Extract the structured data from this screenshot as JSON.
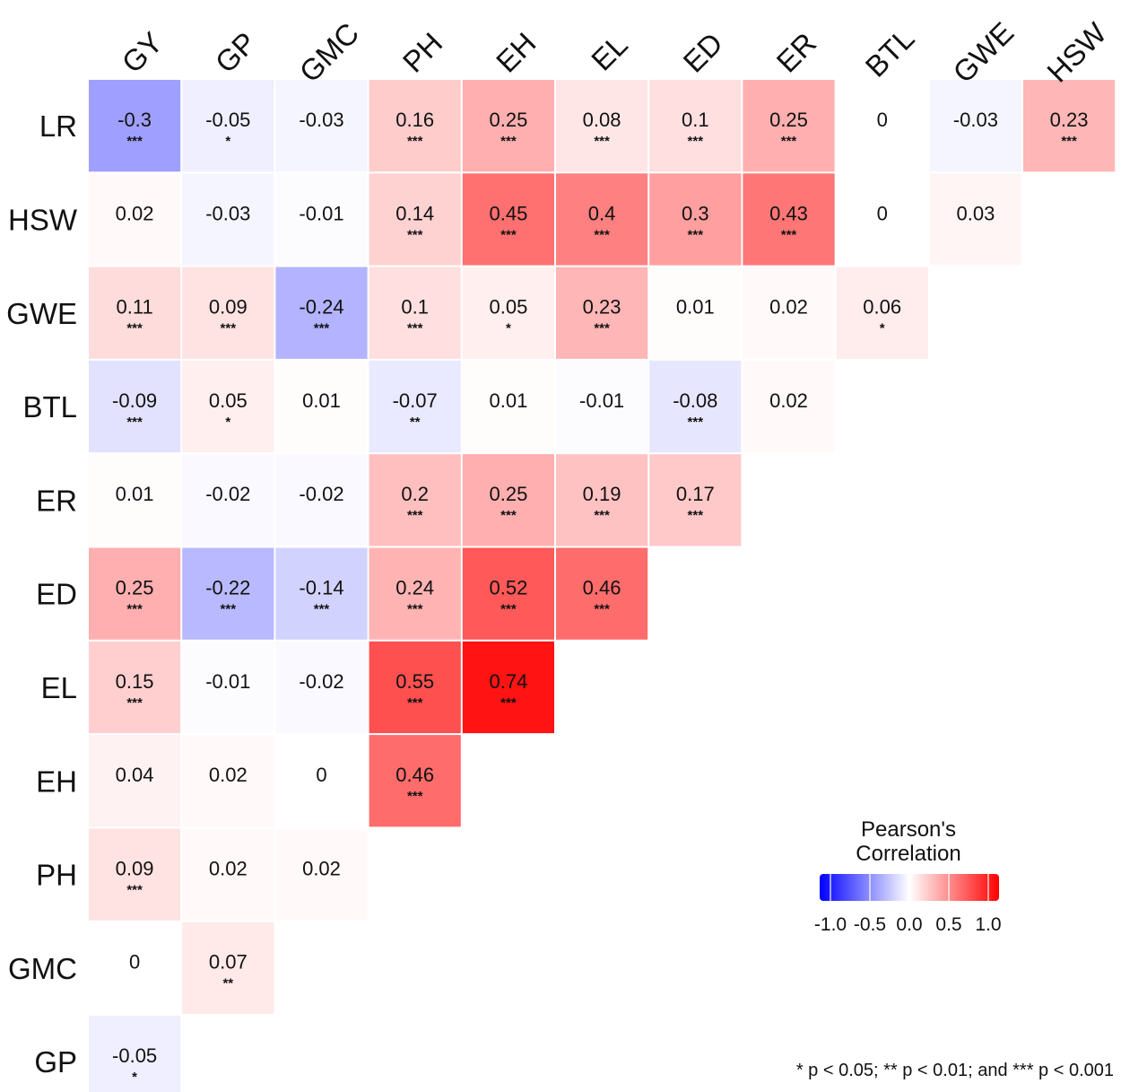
{
  "chart_data": {
    "type": "heatmap",
    "title": "",
    "columns": [
      "GY",
      "GP",
      "GMC",
      "PH",
      "EH",
      "EL",
      "ED",
      "ER",
      "BTL",
      "GWE",
      "HSW"
    ],
    "rows": [
      {
        "label": "LR",
        "cells": [
          {
            "value": -0.3,
            "text": "-0.3",
            "sig": "***"
          },
          {
            "value": -0.05,
            "text": "-0.05",
            "sig": "*"
          },
          {
            "value": -0.03,
            "text": "-0.03",
            "sig": ""
          },
          {
            "value": 0.16,
            "text": "0.16",
            "sig": "***"
          },
          {
            "value": 0.25,
            "text": "0.25",
            "sig": "***"
          },
          {
            "value": 0.08,
            "text": "0.08",
            "sig": "***"
          },
          {
            "value": 0.1,
            "text": "0.1",
            "sig": "***"
          },
          {
            "value": 0.25,
            "text": "0.25",
            "sig": "***"
          },
          {
            "value": 0,
            "text": "0",
            "sig": ""
          },
          {
            "value": -0.03,
            "text": "-0.03",
            "sig": ""
          },
          {
            "value": 0.23,
            "text": "0.23",
            "sig": "***"
          }
        ]
      },
      {
        "label": "HSW",
        "cells": [
          {
            "value": 0.02,
            "text": "0.02",
            "sig": ""
          },
          {
            "value": -0.03,
            "text": "-0.03",
            "sig": ""
          },
          {
            "value": -0.01,
            "text": "-0.01",
            "sig": ""
          },
          {
            "value": 0.14,
            "text": "0.14",
            "sig": "***"
          },
          {
            "value": 0.45,
            "text": "0.45",
            "sig": "***"
          },
          {
            "value": 0.4,
            "text": "0.4",
            "sig": "***"
          },
          {
            "value": 0.3,
            "text": "0.3",
            "sig": "***"
          },
          {
            "value": 0.43,
            "text": "0.43",
            "sig": "***"
          },
          {
            "value": 0,
            "text": "0",
            "sig": ""
          },
          {
            "value": 0.03,
            "text": "0.03",
            "sig": ""
          }
        ]
      },
      {
        "label": "GWE",
        "cells": [
          {
            "value": 0.11,
            "text": "0.11",
            "sig": "***"
          },
          {
            "value": 0.09,
            "text": "0.09",
            "sig": "***"
          },
          {
            "value": -0.24,
            "text": "-0.24",
            "sig": "***"
          },
          {
            "value": 0.1,
            "text": "0.1",
            "sig": "***"
          },
          {
            "value": 0.05,
            "text": "0.05",
            "sig": "*"
          },
          {
            "value": 0.23,
            "text": "0.23",
            "sig": "***"
          },
          {
            "value": 0.01,
            "text": "0.01",
            "sig": ""
          },
          {
            "value": 0.02,
            "text": "0.02",
            "sig": ""
          },
          {
            "value": 0.06,
            "text": "0.06",
            "sig": "*"
          }
        ]
      },
      {
        "label": "BTL",
        "cells": [
          {
            "value": -0.09,
            "text": "-0.09",
            "sig": "***"
          },
          {
            "value": 0.05,
            "text": "0.05",
            "sig": "*"
          },
          {
            "value": 0.01,
            "text": "0.01",
            "sig": ""
          },
          {
            "value": -0.07,
            "text": "-0.07",
            "sig": "**"
          },
          {
            "value": 0.01,
            "text": "0.01",
            "sig": ""
          },
          {
            "value": -0.01,
            "text": "-0.01",
            "sig": ""
          },
          {
            "value": -0.08,
            "text": "-0.08",
            "sig": "***"
          },
          {
            "value": 0.02,
            "text": "0.02",
            "sig": ""
          }
        ]
      },
      {
        "label": "ER",
        "cells": [
          {
            "value": 0.01,
            "text": "0.01",
            "sig": ""
          },
          {
            "value": -0.02,
            "text": "-0.02",
            "sig": ""
          },
          {
            "value": -0.02,
            "text": "-0.02",
            "sig": ""
          },
          {
            "value": 0.2,
            "text": "0.2",
            "sig": "***"
          },
          {
            "value": 0.25,
            "text": "0.25",
            "sig": "***"
          },
          {
            "value": 0.19,
            "text": "0.19",
            "sig": "***"
          },
          {
            "value": 0.17,
            "text": "0.17",
            "sig": "***"
          }
        ]
      },
      {
        "label": "ED",
        "cells": [
          {
            "value": 0.25,
            "text": "0.25",
            "sig": "***"
          },
          {
            "value": -0.22,
            "text": "-0.22",
            "sig": "***"
          },
          {
            "value": -0.14,
            "text": "-0.14",
            "sig": "***"
          },
          {
            "value": 0.24,
            "text": "0.24",
            "sig": "***"
          },
          {
            "value": 0.52,
            "text": "0.52",
            "sig": "***"
          },
          {
            "value": 0.46,
            "text": "0.46",
            "sig": "***"
          }
        ]
      },
      {
        "label": "EL",
        "cells": [
          {
            "value": 0.15,
            "text": "0.15",
            "sig": "***"
          },
          {
            "value": -0.01,
            "text": "-0.01",
            "sig": ""
          },
          {
            "value": -0.02,
            "text": "-0.02",
            "sig": ""
          },
          {
            "value": 0.55,
            "text": "0.55",
            "sig": "***"
          },
          {
            "value": 0.74,
            "text": "0.74",
            "sig": "***"
          }
        ]
      },
      {
        "label": "EH",
        "cells": [
          {
            "value": 0.04,
            "text": "0.04",
            "sig": ""
          },
          {
            "value": 0.02,
            "text": "0.02",
            "sig": ""
          },
          {
            "value": 0,
            "text": "0",
            "sig": ""
          },
          {
            "value": 0.46,
            "text": "0.46",
            "sig": "***"
          }
        ]
      },
      {
        "label": "PH",
        "cells": [
          {
            "value": 0.09,
            "text": "0.09",
            "sig": "***"
          },
          {
            "value": 0.02,
            "text": "0.02",
            "sig": ""
          },
          {
            "value": 0.02,
            "text": "0.02",
            "sig": ""
          }
        ]
      },
      {
        "label": "GMC",
        "cells": [
          {
            "value": 0,
            "text": "0",
            "sig": ""
          },
          {
            "value": 0.07,
            "text": "0.07",
            "sig": "**"
          }
        ]
      },
      {
        "label": "GP",
        "cells": [
          {
            "value": -0.05,
            "text": "-0.05",
            "sig": "*"
          }
        ]
      }
    ],
    "legend": {
      "title_line1": "Pearson's",
      "title_line2": "Correlation",
      "ticks": [
        "-1.0",
        "-0.5",
        "0.0",
        "0.5",
        "1.0"
      ],
      "range": [
        -1.0,
        1.0
      ]
    },
    "footnote": "* p < 0.05; ** p < 0.01; and *** p < 0.001",
    "colors": {
      "negative": "#0000ff",
      "neutral": "#ffffff",
      "positive": "#ff0000"
    }
  }
}
